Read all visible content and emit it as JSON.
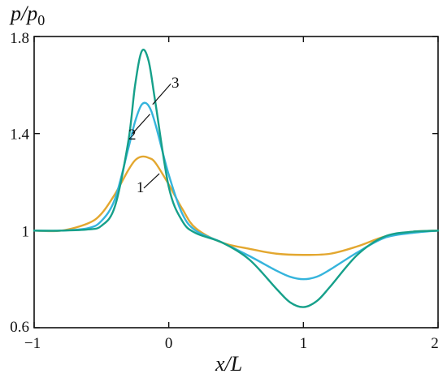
{
  "chart_data": {
    "type": "line",
    "ylabel": {
      "main": "p/p",
      "sub": "0"
    },
    "xlabel": "x/L",
    "xlim": [
      -1,
      2
    ],
    "ylim": [
      0.6,
      1.8
    ],
    "grid": false,
    "x_ticks": [
      -1,
      0,
      1,
      2
    ],
    "x_tick_labels": [
      "−1",
      "0",
      "1",
      "2"
    ],
    "y_ticks": [
      0.6,
      1,
      1.4,
      1.8
    ],
    "y_tick_labels": [
      "0.6",
      "1",
      "1.4",
      "1.8"
    ],
    "colors": {
      "1": "#e3a72f",
      "2": "#35b4dc",
      "3": "#16a08a"
    },
    "series": [
      {
        "name": "1",
        "x": [
          -1,
          -0.8,
          -0.6,
          -0.5,
          -0.4,
          -0.3,
          -0.25,
          -0.2,
          -0.15,
          -0.1,
          0,
          0.1,
          0.2,
          0.4,
          0.6,
          0.8,
          1.0,
          1.2,
          1.4,
          1.6,
          1.8,
          2.0
        ],
        "y": [
          1.0,
          1.0,
          1.03,
          1.07,
          1.15,
          1.25,
          1.29,
          1.305,
          1.3,
          1.28,
          1.19,
          1.09,
          1.01,
          0.95,
          0.925,
          0.905,
          0.9,
          0.905,
          0.935,
          0.975,
          0.995,
          1.0
        ]
      },
      {
        "name": "2",
        "x": [
          -1,
          -0.8,
          -0.6,
          -0.5,
          -0.4,
          -0.3,
          -0.25,
          -0.2,
          -0.15,
          -0.1,
          0,
          0.1,
          0.2,
          0.4,
          0.6,
          0.8,
          0.9,
          1.0,
          1.1,
          1.2,
          1.4,
          1.6,
          1.8,
          2.0
        ],
        "y": [
          1.0,
          1.0,
          1.01,
          1.04,
          1.13,
          1.34,
          1.45,
          1.52,
          1.515,
          1.44,
          1.23,
          1.07,
          1.0,
          0.95,
          0.895,
          0.835,
          0.81,
          0.8,
          0.81,
          0.84,
          0.91,
          0.97,
          0.99,
          1.0
        ]
      },
      {
        "name": "3",
        "x": [
          -1,
          -0.8,
          -0.6,
          -0.5,
          -0.4,
          -0.3,
          -0.25,
          -0.2,
          -0.15,
          -0.1,
          0,
          0.1,
          0.2,
          0.4,
          0.6,
          0.8,
          0.9,
          1.0,
          1.1,
          1.2,
          1.4,
          1.6,
          1.8,
          2.0
        ],
        "y": [
          1.0,
          1.0,
          1.005,
          1.02,
          1.1,
          1.37,
          1.6,
          1.74,
          1.7,
          1.53,
          1.18,
          1.04,
          0.99,
          0.95,
          0.88,
          0.76,
          0.705,
          0.685,
          0.71,
          0.77,
          0.9,
          0.975,
          0.995,
          1.0
        ]
      }
    ]
  }
}
